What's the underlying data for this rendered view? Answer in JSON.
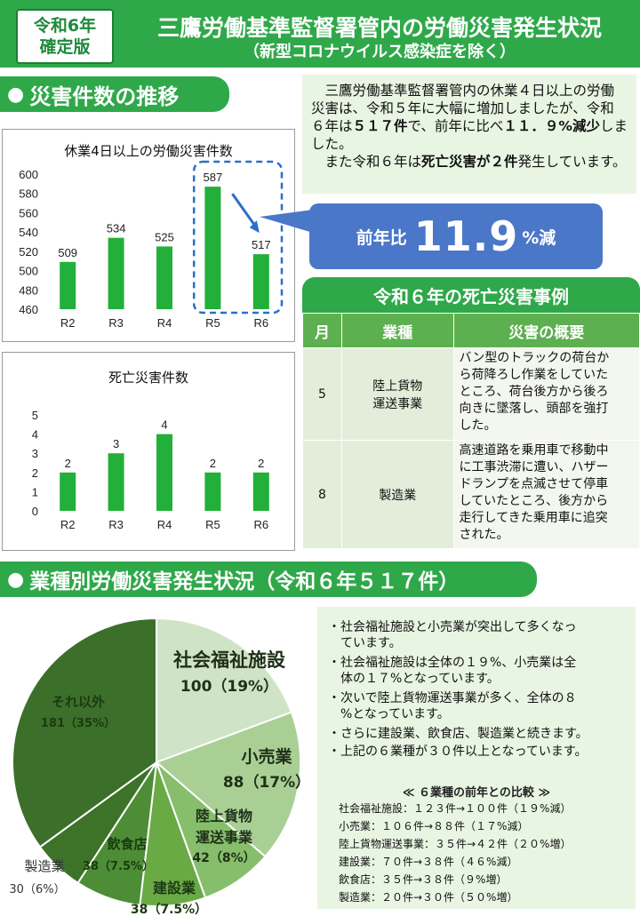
{
  "header": {
    "badge_line1": "令和6年",
    "badge_line2": "確定版",
    "title": "三鷹労働基準監督署管内の労働災害発生状況",
    "subtitle": "（新型コロナウイルス感染症を除く）"
  },
  "section1": {
    "title": "災害件数の推移"
  },
  "section2": {
    "title": "業種別労働災害発生状況（令和６年５１７件）"
  },
  "summary": {
    "p1_a": "　三鷹労働基準監督署管内の休業４日以上の労働災害は、令和５年に大幅に増加しましたが、令和６年は",
    "p1_b": "５１７件",
    "p1_c": "で、前年に比べ",
    "p1_d": "１１．９%減少",
    "p1_e": "しました。",
    "p2_a": "　また令和６年は",
    "p2_b": "死亡災害が２件",
    "p2_c": "発生しています。"
  },
  "callout": {
    "prefix": "前年比",
    "value": "11.9",
    "suffix": "%減"
  },
  "death_table": {
    "title": "令和６年の死亡災害事例",
    "headers": [
      "月",
      "業種",
      "災害の概要"
    ],
    "rows": [
      {
        "month": "5",
        "industry_l1": "陸上貨物",
        "industry_l2": "運送事業",
        "lines": [
          "バン型のトラックの荷台か",
          "ら荷降ろし作業をしていた",
          "ところ、荷台後方から後ろ",
          "向きに墜落し、頭部を強打",
          "した。"
        ]
      },
      {
        "month": "8",
        "industry_l1": "製造業",
        "industry_l2": "",
        "lines": [
          "高速道路を乗用車で移動中",
          "に工事渋滞に遭い、ハザー",
          "ドランプを点滅させて停車",
          "していたところ、後方から",
          "走行してきた乗用車に追突",
          "された。"
        ]
      }
    ]
  },
  "chart_data": [
    {
      "type": "bar",
      "title": "休業4日以上の労働災害件数",
      "categories": [
        "R2",
        "R3",
        "R4",
        "R5",
        "R6"
      ],
      "values": [
        509,
        534,
        525,
        587,
        517
      ],
      "ylim": [
        460,
        600
      ],
      "yticks": [
        460,
        480,
        500,
        520,
        540,
        560,
        580,
        600
      ],
      "color": "#22b03a",
      "highlight_categories": [
        "R5",
        "R6"
      ]
    },
    {
      "type": "bar",
      "title": "死亡災害件数",
      "categories": [
        "R2",
        "R3",
        "R4",
        "R5",
        "R6"
      ],
      "values": [
        2,
        3,
        4,
        2,
        2
      ],
      "ylim": [
        0,
        5
      ],
      "yticks": [
        0,
        1,
        2,
        3,
        4,
        5
      ],
      "color": "#22b03a"
    },
    {
      "type": "pie",
      "slices": [
        {
          "label": "社会福祉施設",
          "value": 100,
          "text": "100（19%）",
          "color": "#cfe3c7"
        },
        {
          "label": "小売業",
          "value": 88,
          "text": "88（17%）",
          "color": "#a9cf95"
        },
        {
          "label": "陸上貨物運送事業",
          "label_l1": "陸上貨物",
          "label_l2": "運送事業",
          "value": 42,
          "text": "42（8%）",
          "color": "#86be6c"
        },
        {
          "label": "建設業",
          "value": 38,
          "text": "38（7.5%）",
          "color": "#6aaa45"
        },
        {
          "label": "飲食店",
          "value": 38,
          "text": "38（7.5%）",
          "color": "#4d8d36"
        },
        {
          "label": "製造業",
          "value": 30,
          "text": "30（6%）",
          "color": "#3d7229"
        },
        {
          "label": "それ以外",
          "value": 181,
          "text": "181（35%）",
          "color": "#3c6f2a"
        }
      ]
    }
  ],
  "bullets": [
    [
      "・社会福祉施設と小売業が突出して多くなっ",
      "　ています。"
    ],
    [
      "・社会福祉施設は全体の１９%、小売業は全",
      "　体の１７%となっています。"
    ],
    [
      "・次いで陸上貨物運送事業が多く、全体の８",
      "　%となっています。"
    ],
    [
      "・さらに建設業、飲食店、製造業と続きます。"
    ],
    [
      "・上記の６業種が３０件以上となっています。"
    ]
  ],
  "comparison": {
    "title": "≪ ６業種の前年との比較 ≫",
    "rows": [
      "社会福祉施設：１２３件→１００件（１９%減）",
      "小売業：１０６件→８８件（１７%減）",
      "陸上貨物運送事業：３５件→４２件（２０%増）",
      "建設業：７０件→３８件（４６%減）",
      "飲食店：３５件→３８件（９%増）",
      "製造業：２０件→３０件（５０%増）"
    ]
  }
}
